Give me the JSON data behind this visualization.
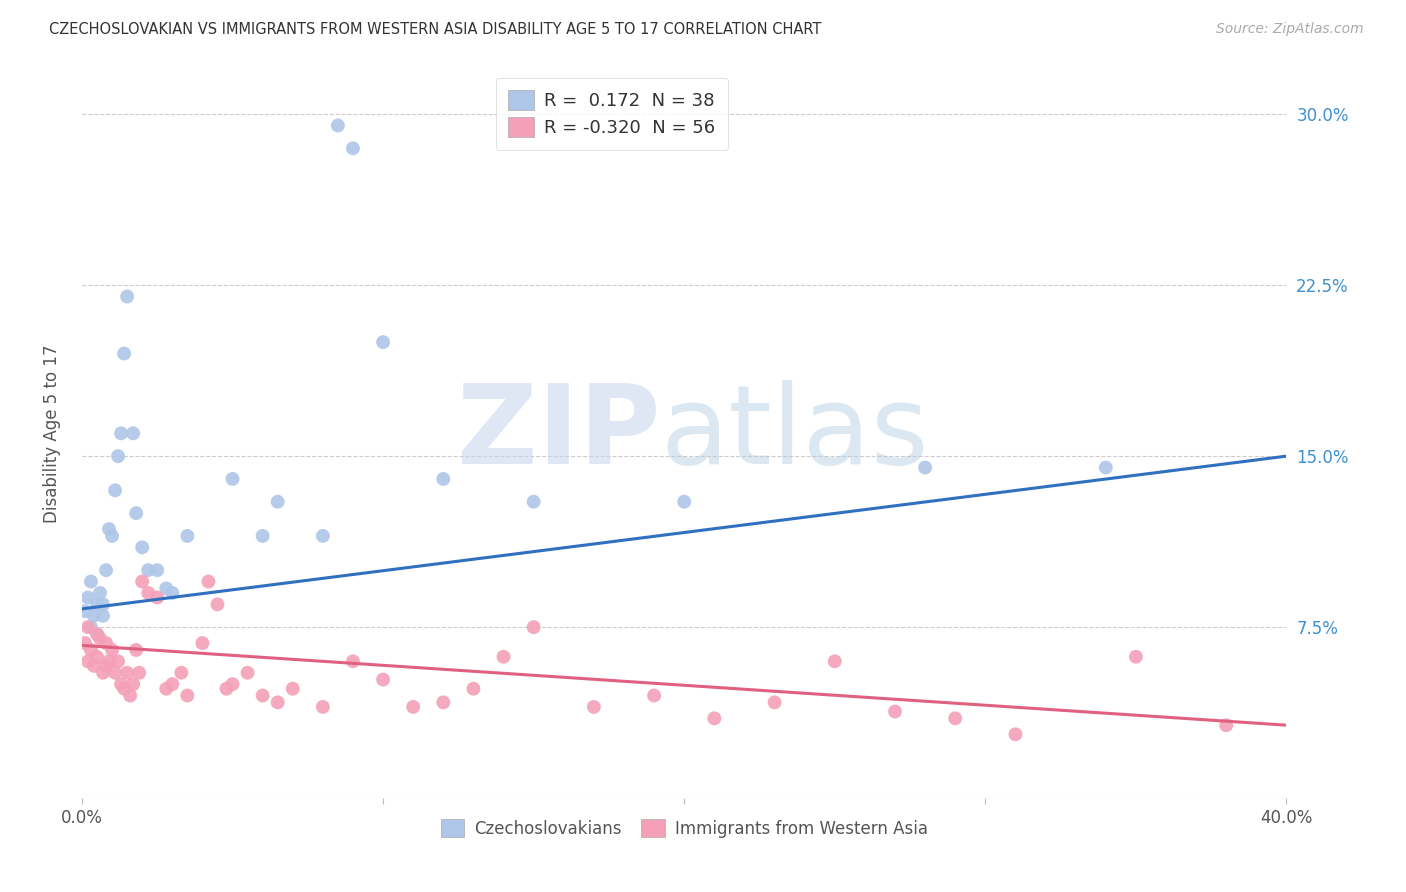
{
  "title": "CZECHOSLOVAKIAN VS IMMIGRANTS FROM WESTERN ASIA DISABILITY AGE 5 TO 17 CORRELATION CHART",
  "source": "Source: ZipAtlas.com",
  "xlabel": "",
  "ylabel": "Disability Age 5 to 17",
  "xlim": [
    0.0,
    0.4
  ],
  "ylim": [
    0.0,
    0.32
  ],
  "xticks": [
    0.0,
    0.1,
    0.2,
    0.3,
    0.4
  ],
  "xticklabels": [
    "0.0%",
    "",
    "",
    "",
    "40.0%"
  ],
  "yticks": [
    0.0,
    0.075,
    0.15,
    0.225,
    0.3
  ],
  "yticklabels_right": [
    "",
    "7.5%",
    "15.0%",
    "22.5%",
    "30.0%"
  ],
  "grid_color": "#cccccc",
  "background_color": "#ffffff",
  "series": [
    {
      "name": "Czechoslovakians",
      "R": 0.172,
      "N": 38,
      "color": "#aec6e8",
      "line_color": "#3070c0",
      "x": [
        0.001,
        0.002,
        0.003,
        0.003,
        0.004,
        0.005,
        0.005,
        0.006,
        0.007,
        0.007,
        0.008,
        0.009,
        0.01,
        0.011,
        0.012,
        0.013,
        0.014,
        0.015,
        0.017,
        0.018,
        0.02,
        0.022,
        0.025,
        0.028,
        0.03,
        0.035,
        0.05,
        0.06,
        0.065,
        0.08,
        0.085,
        0.09,
        0.1,
        0.12,
        0.15,
        0.2,
        0.28,
        0.34
      ],
      "y": [
        0.082,
        0.088,
        0.075,
        0.095,
        0.08,
        0.072,
        0.085,
        0.09,
        0.08,
        0.085,
        0.1,
        0.118,
        0.115,
        0.135,
        0.15,
        0.16,
        0.195,
        0.22,
        0.16,
        0.125,
        0.11,
        0.1,
        0.1,
        0.092,
        0.09,
        0.115,
        0.14,
        0.115,
        0.13,
        0.115,
        0.295,
        0.285,
        0.2,
        0.14,
        0.13,
        0.13,
        0.145,
        0.145
      ],
      "trend_x": [
        0.0,
        0.4
      ],
      "trend_y": [
        0.083,
        0.15
      ]
    },
    {
      "name": "Immigrants from Western Asia",
      "R": -0.32,
      "N": 56,
      "color": "#f4a0b8",
      "line_color": "#e06080",
      "x": [
        0.001,
        0.002,
        0.002,
        0.003,
        0.004,
        0.005,
        0.005,
        0.006,
        0.007,
        0.008,
        0.008,
        0.009,
        0.01,
        0.011,
        0.012,
        0.013,
        0.014,
        0.015,
        0.016,
        0.017,
        0.018,
        0.019,
        0.02,
        0.022,
        0.025,
        0.028,
        0.03,
        0.033,
        0.035,
        0.04,
        0.042,
        0.045,
        0.048,
        0.05,
        0.055,
        0.06,
        0.065,
        0.07,
        0.08,
        0.09,
        0.1,
        0.11,
        0.12,
        0.13,
        0.14,
        0.15,
        0.17,
        0.19,
        0.21,
        0.23,
        0.25,
        0.27,
        0.29,
        0.31,
        0.35,
        0.38
      ],
      "y": [
        0.068,
        0.06,
        0.075,
        0.065,
        0.058,
        0.072,
        0.062,
        0.07,
        0.055,
        0.058,
        0.068,
        0.06,
        0.065,
        0.055,
        0.06,
        0.05,
        0.048,
        0.055,
        0.045,
        0.05,
        0.065,
        0.055,
        0.095,
        0.09,
        0.088,
        0.048,
        0.05,
        0.055,
        0.045,
        0.068,
        0.095,
        0.085,
        0.048,
        0.05,
        0.055,
        0.045,
        0.042,
        0.048,
        0.04,
        0.06,
        0.052,
        0.04,
        0.042,
        0.048,
        0.062,
        0.075,
        0.04,
        0.045,
        0.035,
        0.042,
        0.06,
        0.038,
        0.035,
        0.028,
        0.062,
        0.032
      ],
      "trend_x": [
        0.0,
        0.4
      ],
      "trend_y": [
        0.067,
        0.032
      ]
    }
  ],
  "top_legend": {
    "entries": [
      {
        "label_r": "R = ",
        "label_val": " 0.172",
        "label_n": "  N = ",
        "label_nval": "38",
        "color": "#aec6e8"
      },
      {
        "label_r": "R = ",
        "label_val": "-0.320",
        "label_n": "  N = ",
        "label_nval": "56",
        "color": "#f4a0b8"
      }
    ]
  },
  "bottom_legend": [
    {
      "label": "Czechoslovakians",
      "color": "#aec6e8"
    },
    {
      "label": "Immigrants from Western Asia",
      "color": "#f4a0b8"
    }
  ]
}
